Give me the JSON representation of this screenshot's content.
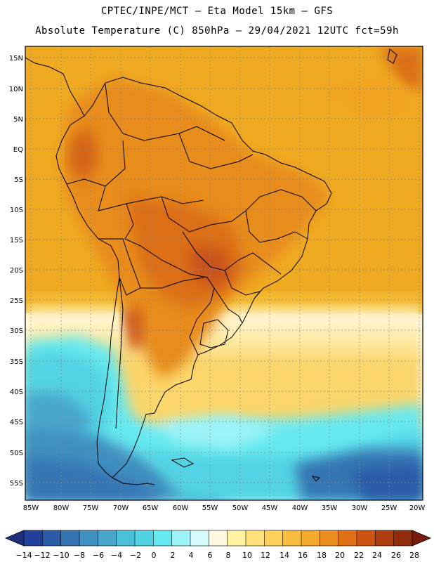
{
  "header": {
    "line1": "CPTEC/INPE/MCT –  Eta Model 15km – GFS",
    "line2": "Absolute Temperature (C) 850hPa – 29/04/2021 12UTC fct=59h"
  },
  "axes": {
    "lat_labels": [
      "15N",
      "10N",
      "5N",
      "EQ",
      "5S",
      "10S",
      "15S",
      "20S",
      "25S",
      "30S",
      "35S",
      "40S",
      "45S",
      "50S",
      "55S"
    ],
    "lon_labels": [
      "85W",
      "80W",
      "75W",
      "70W",
      "65W",
      "60W",
      "55W",
      "50W",
      "45W",
      "40W",
      "35W",
      "30W",
      "25W",
      "20W"
    ]
  },
  "colorbar": {
    "labels": [
      "−14",
      "−12",
      "−10",
      "−8",
      "−6",
      "−4",
      "−2",
      "0",
      "2",
      "4",
      "6",
      "8",
      "10",
      "12",
      "14",
      "16",
      "18",
      "20",
      "22",
      "24",
      "26",
      "28"
    ],
    "colors": [
      "#22409a",
      "#2a5aa8",
      "#3674b4",
      "#3f8fc0",
      "#48a6cc",
      "#4cbfd8",
      "#52d3e4",
      "#66e9f0",
      "#9cf3f8",
      "#d4fafc",
      "#fff8e0",
      "#fff2a0",
      "#ffe27a",
      "#fcd05a",
      "#f8bd3e",
      "#f4a92a",
      "#ec8e1e",
      "#e06e14",
      "#cc5410",
      "#b03e0e",
      "#902c0c"
    ],
    "low_arrow_color": "#1e2f7e",
    "high_arrow_color": "#7a1a0a"
  }
}
